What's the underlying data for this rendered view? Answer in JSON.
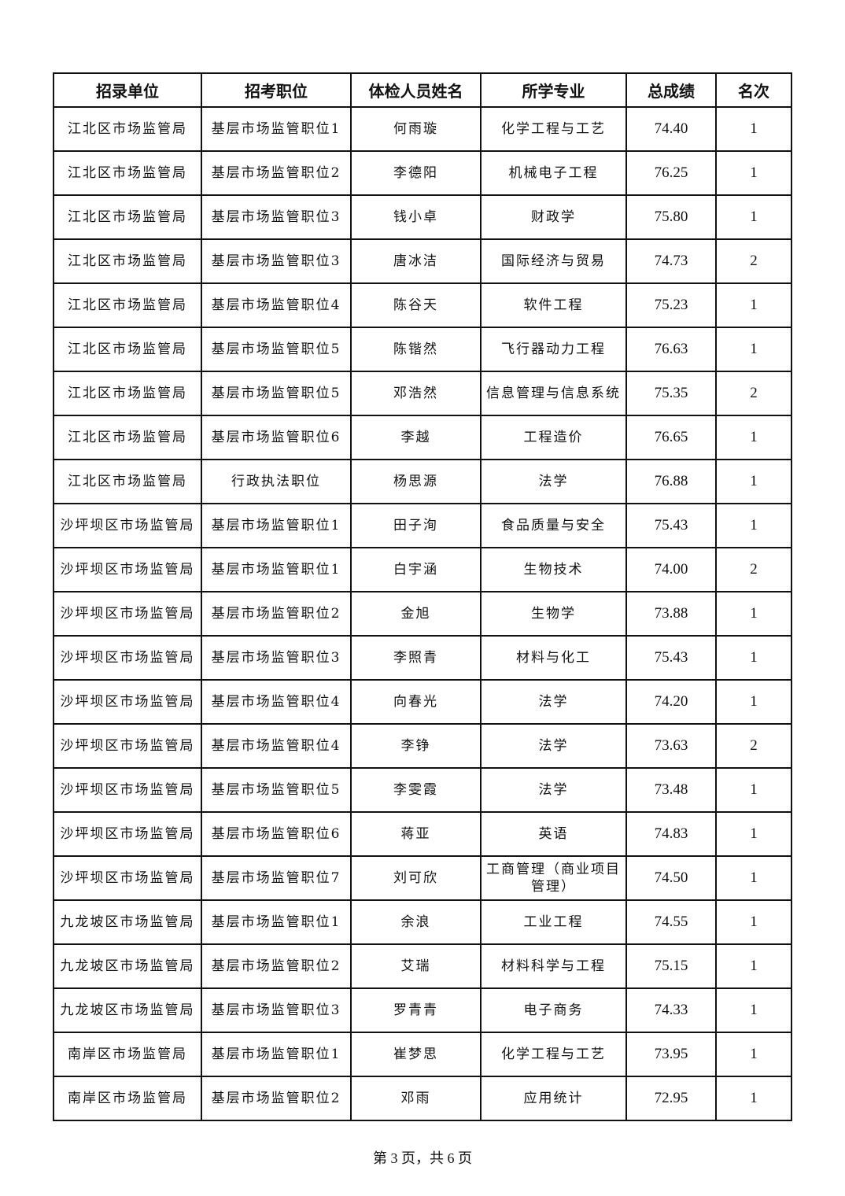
{
  "headers": [
    "招录单位",
    "招考职位",
    "体检人员姓名",
    "所学专业",
    "总成绩",
    "名次"
  ],
  "rows": [
    [
      "江北区市场监管局",
      "基层市场监管职位1",
      "何雨璇",
      "化学工程与工艺",
      "74.40",
      "1"
    ],
    [
      "江北区市场监管局",
      "基层市场监管职位2",
      "李德阳",
      "机械电子工程",
      "76.25",
      "1"
    ],
    [
      "江北区市场监管局",
      "基层市场监管职位3",
      "钱小卓",
      "财政学",
      "75.80",
      "1"
    ],
    [
      "江北区市场监管局",
      "基层市场监管职位3",
      "唐冰洁",
      "国际经济与贸易",
      "74.73",
      "2"
    ],
    [
      "江北区市场监管局",
      "基层市场监管职位4",
      "陈谷天",
      "软件工程",
      "75.23",
      "1"
    ],
    [
      "江北区市场监管局",
      "基层市场监管职位5",
      "陈锴然",
      "飞行器动力工程",
      "76.63",
      "1"
    ],
    [
      "江北区市场监管局",
      "基层市场监管职位5",
      "邓浩然",
      "信息管理与信息系统",
      "75.35",
      "2"
    ],
    [
      "江北区市场监管局",
      "基层市场监管职位6",
      "李越",
      "工程造价",
      "76.65",
      "1"
    ],
    [
      "江北区市场监管局",
      "行政执法职位",
      "杨思源",
      "法学",
      "76.88",
      "1"
    ],
    [
      "沙坪坝区市场监管局",
      "基层市场监管职位1",
      "田子洵",
      "食品质量与安全",
      "75.43",
      "1"
    ],
    [
      "沙坪坝区市场监管局",
      "基层市场监管职位1",
      "白宇涵",
      "生物技术",
      "74.00",
      "2"
    ],
    [
      "沙坪坝区市场监管局",
      "基层市场监管职位2",
      "金旭",
      "生物学",
      "73.88",
      "1"
    ],
    [
      "沙坪坝区市场监管局",
      "基层市场监管职位3",
      "李照青",
      "材料与化工",
      "75.43",
      "1"
    ],
    [
      "沙坪坝区市场监管局",
      "基层市场监管职位4",
      "向春光",
      "法学",
      "74.20",
      "1"
    ],
    [
      "沙坪坝区市场监管局",
      "基层市场监管职位4",
      "李铮",
      "法学",
      "73.63",
      "2"
    ],
    [
      "沙坪坝区市场监管局",
      "基层市场监管职位5",
      "李雯霞",
      "法学",
      "73.48",
      "1"
    ],
    [
      "沙坪坝区市场监管局",
      "基层市场监管职位6",
      "蒋亚",
      "英语",
      "74.83",
      "1"
    ],
    [
      "沙坪坝区市场监管局",
      "基层市场监管职位7",
      "刘可欣",
      "工商管理（商业项目管理）",
      "74.50",
      "1"
    ],
    [
      "九龙坡区市场监管局",
      "基层市场监管职位1",
      "余浪",
      "工业工程",
      "74.55",
      "1"
    ],
    [
      "九龙坡区市场监管局",
      "基层市场监管职位2",
      "艾瑞",
      "材料科学与工程",
      "75.15",
      "1"
    ],
    [
      "九龙坡区市场监管局",
      "基层市场监管职位3",
      "罗青青",
      "电子商务",
      "74.33",
      "1"
    ],
    [
      "南岸区市场监管局",
      "基层市场监管职位1",
      "崔梦思",
      "化学工程与工艺",
      "73.95",
      "1"
    ],
    [
      "南岸区市场监管局",
      "基层市场监管职位2",
      "邓雨",
      "应用统计",
      "72.95",
      "1"
    ]
  ],
  "footer": "第 3 页，共 6 页"
}
